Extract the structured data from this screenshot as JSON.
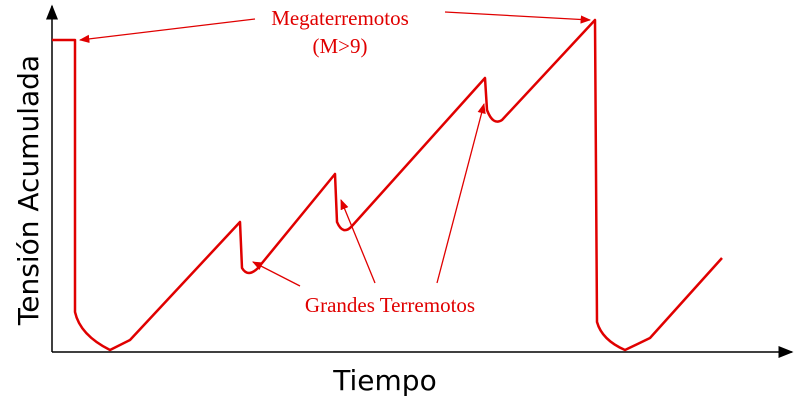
{
  "annotations": {
    "mega": "Megaterremotos",
    "mega_sub": "(M>9)",
    "grandes": "Grandes Terremotos"
  },
  "axes": {
    "x_label": "Tiempo",
    "y_label": "Tensión Acumulada"
  }
}
